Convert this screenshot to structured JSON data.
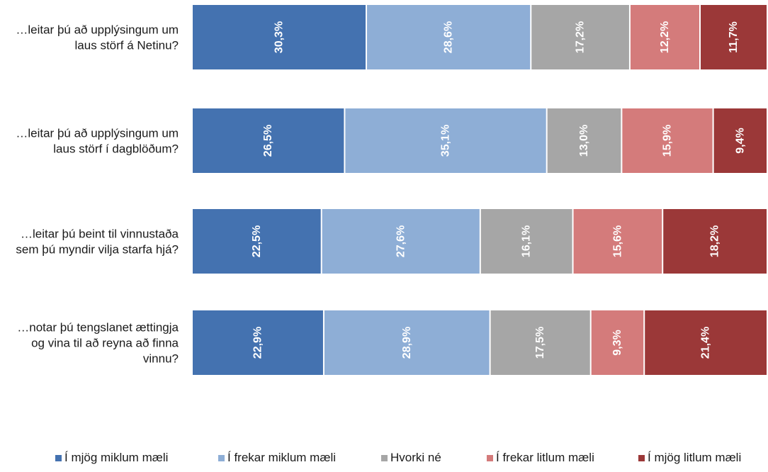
{
  "chart_data": {
    "type": "bar",
    "orientation": "horizontal",
    "stacked": "percent",
    "categories": [
      "…leitar þú að upplýsingum um laus störf á Netinu?",
      "…leitar þú að upplýsingum um laus störf í dagblöðum?",
      "…leitar þú beint til vinnustaða sem þú myndir vilja starfa hjá?",
      "…notar þú tengslanet ættingja og vina til að reyna að finna vinnu?"
    ],
    "category_lines": [
      [
        "…leitar þú að upplýsingum um",
        "laus störf á Netinu?"
      ],
      [
        "…leitar þú að upplýsingum um",
        "laus störf í dagblöðum?"
      ],
      [
        "…leitar þú beint til vinnustaða",
        "sem þú myndir vilja starfa hjá?"
      ],
      [
        "…notar þú tengslanet ættingja",
        "og vina til að reyna að finna",
        "vinnu?"
      ]
    ],
    "series": [
      {
        "name": "Í mjög miklum mæli",
        "color": "#4472b0",
        "values": [
          30.3,
          26.5,
          22.5,
          22.9
        ],
        "labels": [
          "30,3%",
          "26,5%",
          "22,5%",
          "22,9%"
        ]
      },
      {
        "name": "Í frekar miklum mæli",
        "color": "#8eaed6",
        "values": [
          28.6,
          35.1,
          27.6,
          28.9
        ],
        "labels": [
          "28,6%",
          "35,1%",
          "27,6%",
          "28,9%"
        ]
      },
      {
        "name": "Hvorki né",
        "color": "#a6a6a6",
        "values": [
          17.2,
          13.0,
          16.1,
          17.5
        ],
        "labels": [
          "17,2%",
          "13,0%",
          "16,1%",
          "17,5%"
        ]
      },
      {
        "name": "Í frekar litlum mæli",
        "color": "#d47b7b",
        "values": [
          12.2,
          15.9,
          15.6,
          9.3
        ],
        "labels": [
          "12,2%",
          "15,9%",
          "15,6%",
          "9,3%"
        ]
      },
      {
        "name": "Í mjög litlum mæli",
        "color": "#9b3838",
        "values": [
          11.7,
          9.4,
          18.2,
          21.4
        ],
        "labels": [
          "11,7%",
          "9,4%",
          "18,2%",
          "21,4%"
        ]
      }
    ],
    "legend_position": "bottom",
    "grid": false
  }
}
